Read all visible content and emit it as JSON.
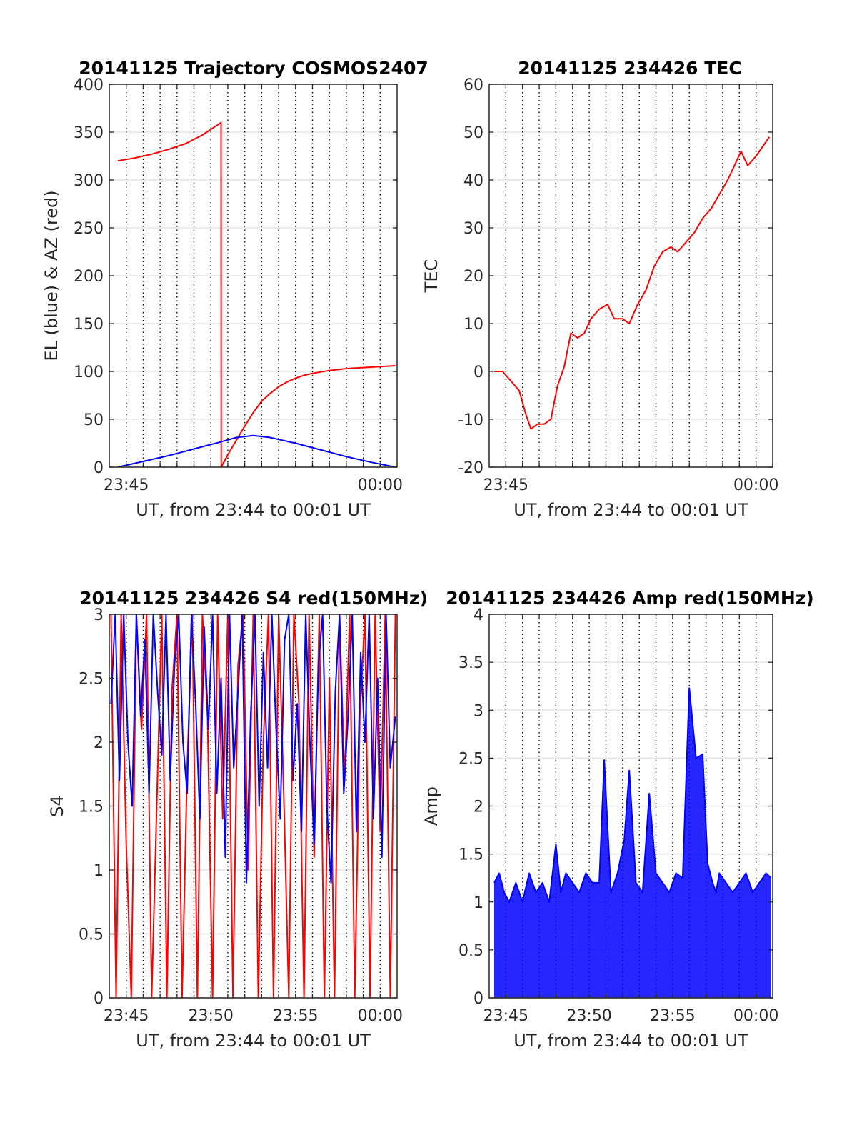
{
  "chart_data": [
    {
      "type": "line",
      "title": "20141125 Trajectory COSMOS2407",
      "xlabel": "UT, from 23:44 to 00:01 UT",
      "ylabel": "EL (blue) & AZ (red)",
      "xlim_minutes": [
        0,
        17
      ],
      "ylim": [
        0,
        400
      ],
      "yticks": [
        0,
        50,
        100,
        150,
        200,
        250,
        300,
        350,
        400
      ],
      "xticks": [
        {
          "minute": 1,
          "label": "23:45"
        },
        {
          "minute": 16,
          "label": "00:00"
        }
      ],
      "minor_grid_minutes": [
        1,
        2,
        3,
        4,
        5,
        6,
        7,
        8,
        9,
        10,
        11,
        12,
        13,
        14,
        15,
        16
      ],
      "grid": true,
      "series": [
        {
          "color": "#ff0000",
          "x": [
            0.5,
            1.5,
            2.5,
            3.5,
            4.5,
            5.5,
            6.6,
            6.61,
            7.0,
            7.5,
            8.0,
            8.5,
            9.0,
            9.5,
            10.0,
            10.5,
            11.0,
            11.5,
            12.0,
            13.0,
            14.0,
            15.0,
            16.0,
            16.9
          ],
          "y": [
            320,
            323,
            327,
            332,
            338,
            347,
            360,
            0,
            13,
            28,
            43,
            57,
            69,
            77,
            84,
            89,
            93,
            96,
            98,
            101,
            103,
            104,
            105,
            106
          ]
        },
        {
          "color": "#0000ff",
          "x": [
            0.5,
            2.0,
            3.5,
            5.0,
            6.5,
            7.5,
            8.5,
            9.5,
            11.0,
            12.5,
            14.0,
            15.5,
            16.9
          ],
          "y": [
            0,
            6,
            12,
            19,
            26,
            31,
            33,
            31,
            25,
            18,
            11,
            5,
            0
          ]
        }
      ]
    },
    {
      "type": "line",
      "title": "20141125 234426 TEC",
      "xlabel": "UT, from 23:44 to 00:01 UT",
      "ylabel": "TEC",
      "xlim_minutes": [
        0,
        17
      ],
      "ylim": [
        -20,
        60
      ],
      "yticks": [
        -20,
        -10,
        0,
        10,
        20,
        30,
        40,
        50,
        60
      ],
      "xticks": [
        {
          "minute": 1,
          "label": "23:45"
        },
        {
          "minute": 16,
          "label": "00:00"
        }
      ],
      "minor_grid_minutes": [
        1,
        2,
        3,
        4,
        5,
        6,
        7,
        8,
        9,
        10,
        11,
        12,
        13,
        14,
        15,
        16
      ],
      "grid": true,
      "series": [
        {
          "color": "#ff0000",
          "x": [
            0.3,
            0.8,
            1.3,
            1.8,
            2.2,
            2.5,
            2.9,
            3.3,
            3.7,
            4.1,
            4.5,
            4.9,
            5.3,
            5.7,
            6.1,
            6.6,
            7.1,
            7.5,
            8.0,
            8.4,
            8.9,
            9.4,
            9.9,
            10.4,
            10.9,
            11.3,
            11.8,
            12.3,
            12.8,
            13.3,
            13.8,
            14.3,
            14.7,
            15.1,
            15.5,
            16.0,
            16.4,
            16.8
          ],
          "y": [
            0,
            0,
            -2,
            -4,
            -9,
            -12,
            -11,
            -11,
            -10,
            -3,
            1,
            8,
            7,
            8,
            11,
            13,
            14,
            11,
            11,
            10,
            14,
            17,
            22,
            25,
            26,
            25,
            27,
            29,
            32,
            34,
            37,
            40,
            43,
            46,
            43,
            45,
            47,
            49
          ]
        }
      ]
    },
    {
      "type": "line",
      "title": "20141125 234426 S4 red(150MHz)",
      "xlabel": "UT, from 23:44 to 00:01 UT",
      "ylabel": "S4",
      "xlim_minutes": [
        0,
        17
      ],
      "ylim": [
        0,
        3
      ],
      "yticks": [
        0,
        0.5,
        1,
        1.5,
        2,
        2.5,
        3
      ],
      "xticks": [
        {
          "minute": 1,
          "label": "23:45"
        },
        {
          "minute": 6,
          "label": "23:50"
        },
        {
          "minute": 11,
          "label": "23:55"
        },
        {
          "minute": 16,
          "label": "00:00"
        }
      ],
      "minor_grid_minutes": [
        1,
        2,
        3,
        4,
        5,
        6,
        7,
        8,
        9,
        10,
        11,
        12,
        13,
        14,
        15,
        16
      ],
      "grid": true,
      "series": [
        {
          "color": "#ff0000",
          "x": [
            0.1,
            0.4,
            0.7,
            1.0,
            1.3,
            1.6,
            1.9,
            2.2,
            2.5,
            2.8,
            3.1,
            3.4,
            3.7,
            4.0,
            4.3,
            4.6,
            4.9,
            5.2,
            5.5,
            5.8,
            6.1,
            6.4,
            6.7,
            7.0,
            7.3,
            7.6,
            7.9,
            8.2,
            8.5,
            8.8,
            9.1,
            9.4,
            9.7,
            10.0,
            10.3,
            10.6,
            10.9,
            11.2,
            11.5,
            11.8,
            12.1,
            12.4,
            12.7,
            13.0,
            13.3,
            13.6,
            13.9,
            14.2,
            14.5,
            14.8,
            15.1,
            15.4,
            15.7,
            16.0,
            16.3,
            16.6,
            16.9
          ],
          "y": [
            3,
            0,
            3,
            1.2,
            0,
            3,
            2.1,
            3,
            0,
            1.5,
            3,
            0,
            2.4,
            3,
            0,
            1.8,
            3,
            0,
            3,
            2.2,
            0,
            3,
            1.4,
            3,
            0,
            2.6,
            3,
            1.0,
            3,
            0,
            2.0,
            3,
            0,
            3,
            1.6,
            0,
            3,
            2.3,
            0,
            3,
            1.1,
            3,
            0,
            2.5,
            0,
            3,
            1.7,
            3,
            0,
            2.2,
            3,
            0,
            3,
            1.3,
            3,
            0,
            3
          ]
        },
        {
          "color": "#0000ff",
          "x": [
            0.1,
            0.35,
            0.6,
            0.85,
            1.1,
            1.35,
            1.6,
            1.85,
            2.1,
            2.35,
            2.6,
            2.85,
            3.1,
            3.35,
            3.6,
            3.85,
            4.1,
            4.35,
            4.6,
            4.85,
            5.1,
            5.35,
            5.6,
            5.85,
            6.1,
            6.35,
            6.6,
            6.85,
            7.1,
            7.35,
            7.6,
            7.85,
            8.1,
            8.35,
            8.6,
            8.85,
            9.1,
            9.35,
            9.6,
            9.85,
            10.1,
            10.35,
            10.6,
            10.85,
            11.1,
            11.35,
            11.6,
            11.85,
            12.1,
            12.35,
            12.6,
            12.85,
            13.1,
            13.35,
            13.6,
            13.85,
            14.1,
            14.35,
            14.6,
            14.85,
            15.1,
            15.35,
            15.6,
            15.85,
            16.1,
            16.35,
            16.6,
            16.9
          ],
          "y": [
            2.3,
            3,
            1.7,
            3,
            2.0,
            1.5,
            3,
            2.2,
            2.8,
            1.6,
            3,
            2.4,
            1.9,
            3,
            1.7,
            2.6,
            3,
            2.0,
            1.6,
            3,
            2.3,
            1.4,
            2.9,
            2.1,
            3,
            1.6,
            2.5,
            1.1,
            3,
            1.8,
            2.4,
            3,
            0.9,
            2.2,
            3,
            1.5,
            2.7,
            1.8,
            3,
            2.1,
            1.4,
            2.8,
            3,
            1.7,
            2.3,
            1.3,
            3,
            2.0,
            1.2,
            2.6,
            3,
            1.5,
            0.9,
            2.4,
            3,
            1.6,
            2.2,
            3,
            1.3,
            2.7,
            2.0,
            3,
            1.4,
            2.5,
            1.1,
            3,
            1.8,
            2.2
          ]
        }
      ]
    },
    {
      "type": "line",
      "title": "20141125 234426 Amp red(150MHz)",
      "xlabel": "UT, from 23:44 to 00:01 UT",
      "ylabel": "Amp",
      "xlim_minutes": [
        0,
        17
      ],
      "ylim": [
        0,
        4
      ],
      "yticks": [
        0,
        0.5,
        1,
        1.5,
        2,
        2.5,
        3,
        3.5,
        4
      ],
      "xticks": [
        {
          "minute": 1,
          "label": "23:45"
        },
        {
          "minute": 6,
          "label": "23:50"
        },
        {
          "minute": 11,
          "label": "23:55"
        },
        {
          "minute": 16,
          "label": "00:00"
        }
      ],
      "minor_grid_minutes": [
        1,
        2,
        3,
        4,
        5,
        6,
        7,
        8,
        9,
        10,
        11,
        12,
        13,
        14,
        15,
        16
      ],
      "grid": true,
      "series": [
        {
          "color": "#0000ff",
          "fill_under": true,
          "x": [
            0.3,
            0.6,
            0.9,
            1.2,
            1.6,
            2.0,
            2.4,
            2.8,
            3.2,
            3.6,
            4.0,
            4.3,
            4.6,
            5.0,
            5.4,
            5.8,
            6.2,
            6.6,
            6.9,
            7.3,
            7.7,
            8.1,
            8.4,
            8.8,
            9.2,
            9.6,
            10.0,
            10.4,
            10.8,
            11.2,
            11.6,
            12.0,
            12.4,
            12.8,
            13.1,
            13.4,
            13.6,
            13.8,
            14.2,
            14.6,
            15.0,
            15.4,
            15.8,
            16.2,
            16.6,
            16.9
          ],
          "y": [
            1.2,
            1.3,
            1.1,
            1.0,
            1.2,
            1.0,
            1.3,
            1.1,
            1.2,
            1.0,
            1.6,
            1.1,
            1.3,
            1.2,
            1.1,
            1.3,
            1.2,
            1.2,
            2.48,
            1.1,
            1.3,
            1.65,
            2.37,
            1.2,
            1.1,
            2.13,
            1.3,
            1.2,
            1.1,
            1.3,
            1.25,
            3.23,
            2.5,
            2.54,
            1.4,
            1.2,
            1.1,
            1.3,
            1.2,
            1.1,
            1.2,
            1.3,
            1.1,
            1.2,
            1.3,
            1.25
          ]
        }
      ]
    }
  ]
}
